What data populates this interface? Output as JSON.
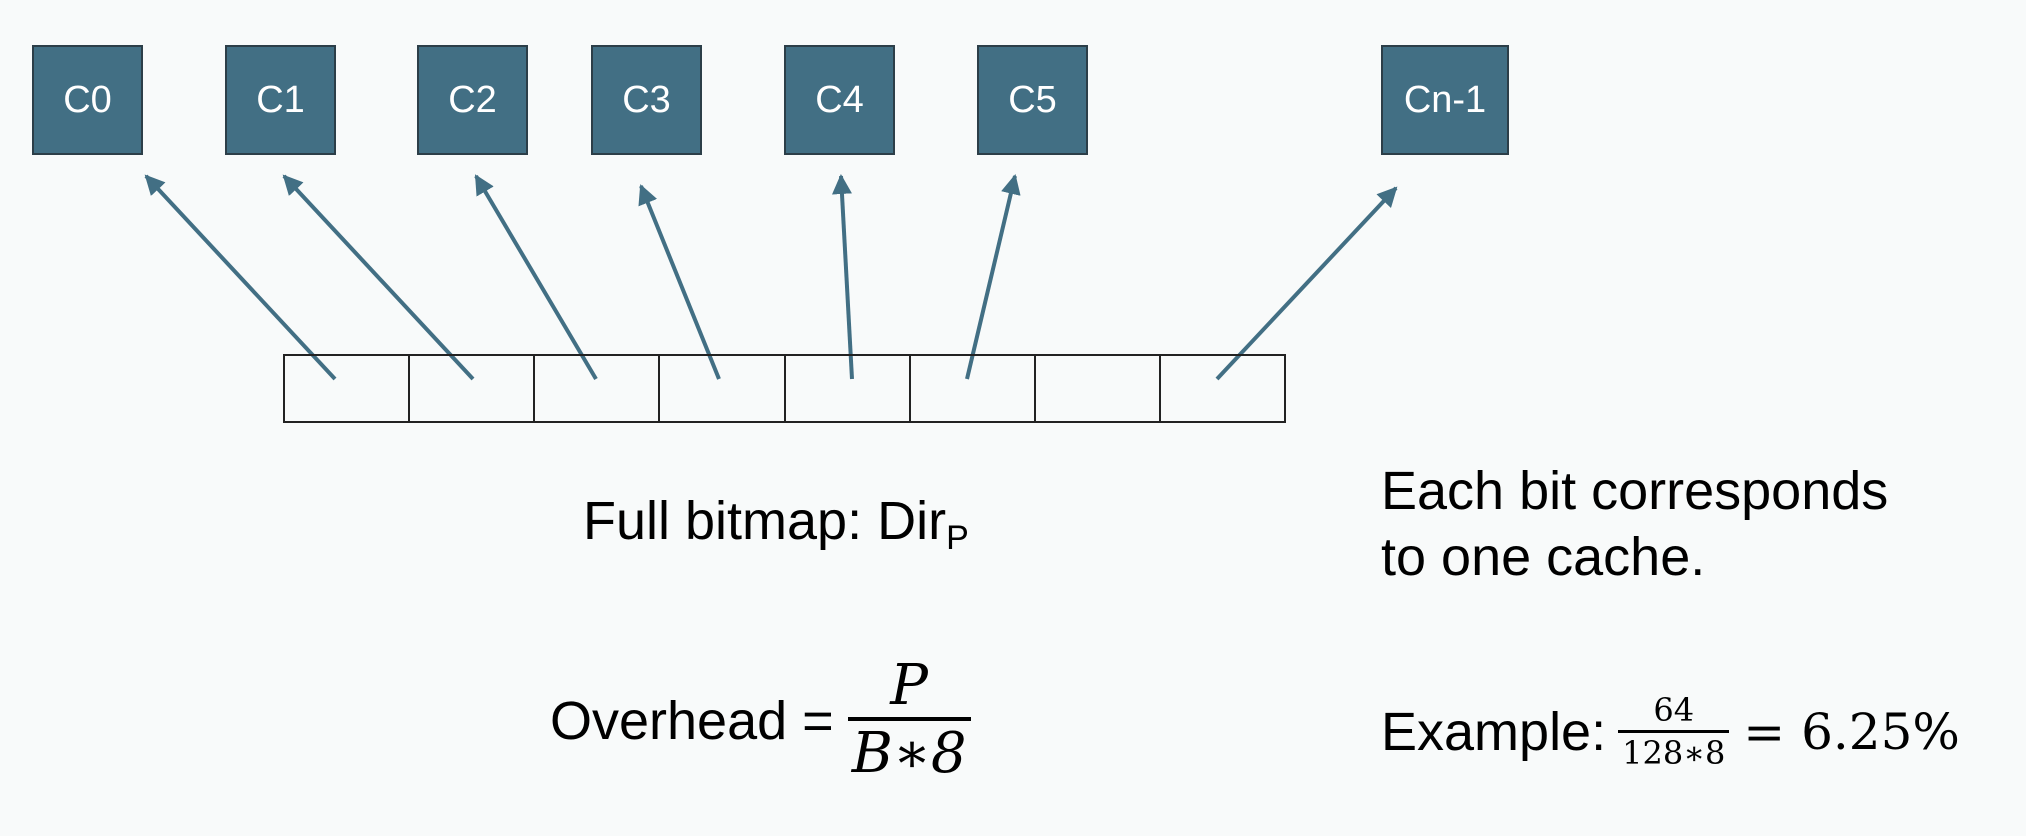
{
  "caches": [
    {
      "label": "C0"
    },
    {
      "label": "C1"
    },
    {
      "label": "C2"
    },
    {
      "label": "C3"
    },
    {
      "label": "C4"
    },
    {
      "label": "C5"
    },
    {
      "label": "Cn-1"
    }
  ],
  "bitmap": {
    "cell_count": 8
  },
  "caption": {
    "text": "Full bitmap: Dir",
    "subscript": "P"
  },
  "note": {
    "line1": "Each bit corresponds",
    "line2": "to one cache."
  },
  "overhead": {
    "label": "Overhead =",
    "numerator": "P",
    "denominator": "B∗8"
  },
  "example": {
    "label": "Example:",
    "numerator": "64",
    "denominator": "128∗8",
    "result": "= 6.25%"
  },
  "colors": {
    "cache_fill": "#426f84",
    "arrow": "#426f84",
    "background": "#f8fafa"
  }
}
